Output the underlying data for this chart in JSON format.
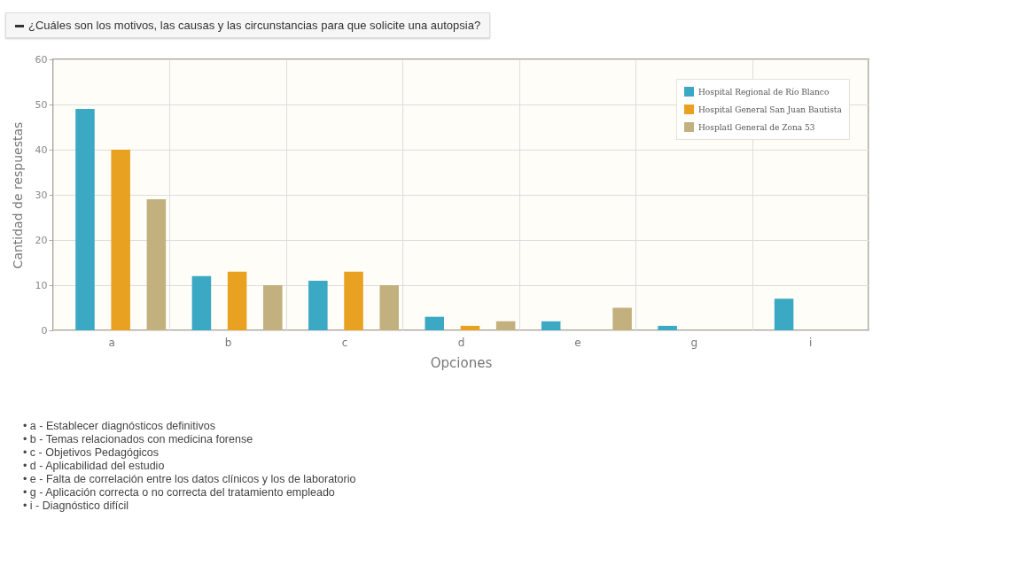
{
  "chart_data": {
    "type": "bar",
    "title": "¿Cuáles son los motivos, las causas y las circunstancias para que solicite una autopsia?",
    "xlabel": "Opciones",
    "ylabel": "Cantidad de  respuestas",
    "categories": [
      "a",
      "b",
      "c",
      "d",
      "e",
      "g",
      "i"
    ],
    "series": [
      {
        "name": "Hospital Regional de Río Blanco",
        "color": "#3ba8c4",
        "values": [
          49,
          12,
          11,
          3,
          2,
          1,
          7
        ]
      },
      {
        "name": "Hospital General San Juan Bautista",
        "color": "#e9a122",
        "values": [
          40,
          13,
          13,
          1,
          0,
          0,
          0
        ]
      },
      {
        "name": "Hosplatl General de Zona 53",
        "color": "#c2b07e",
        "values": [
          29,
          10,
          10,
          2,
          5,
          0,
          0
        ]
      }
    ],
    "ylim": [
      0,
      60
    ],
    "yticks": [
      0,
      10,
      20,
      30,
      40,
      50,
      60
    ],
    "grid": true,
    "legend": "top right",
    "annotations": [
      "• a - Establecer diagnósticos definitivos",
      "• b - Temas relacionados con medicina forense",
      "• c - Objetivos Pedagógicos",
      "• d - Aplicabilidad del estudio",
      "• e - Falta de correlación entre los datos clínicos y los de laboratorio",
      "• g - Aplicación correcta o no correcta del tratamiento empleado",
      "• i - Diagnóstico difícil"
    ]
  }
}
